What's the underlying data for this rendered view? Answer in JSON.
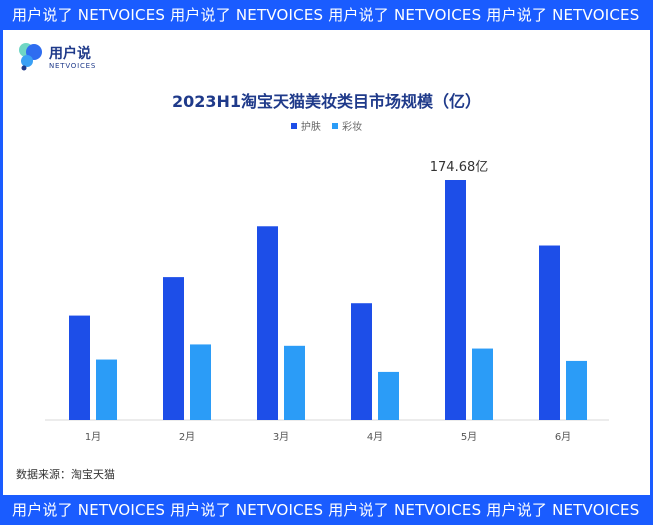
{
  "banner": {
    "text": "用户说了 NETVOICES 用户说了 NETVOICES 用户说了 NETVOICES 用户说了 NETVOICES"
  },
  "logo": {
    "name": "用户说",
    "sub": "NETVOICES"
  },
  "source": "数据来源：淘宝天猫",
  "colors": {
    "skincare": "#1d4ee8",
    "makeup": "#2b9cf7",
    "brand": "#1a5cff"
  },
  "chart_data": {
    "type": "bar",
    "title": "2023H1淘宝天猫美妆类目市场规模（亿）",
    "categories": [
      "1月",
      "2月",
      "3月",
      "4月",
      "5月",
      "6月"
    ],
    "series": [
      {
        "name": "护肤",
        "values": [
          76,
          104,
          141,
          85,
          174.68,
          127
        ]
      },
      {
        "name": "彩妆",
        "values": [
          44,
          55,
          54,
          35,
          52,
          43
        ]
      }
    ],
    "annotations": [
      {
        "series": 0,
        "index": 4,
        "text": "174.68亿"
      }
    ],
    "ylim": [
      0,
      174.68
    ],
    "grid": false,
    "legend": "top-center"
  }
}
